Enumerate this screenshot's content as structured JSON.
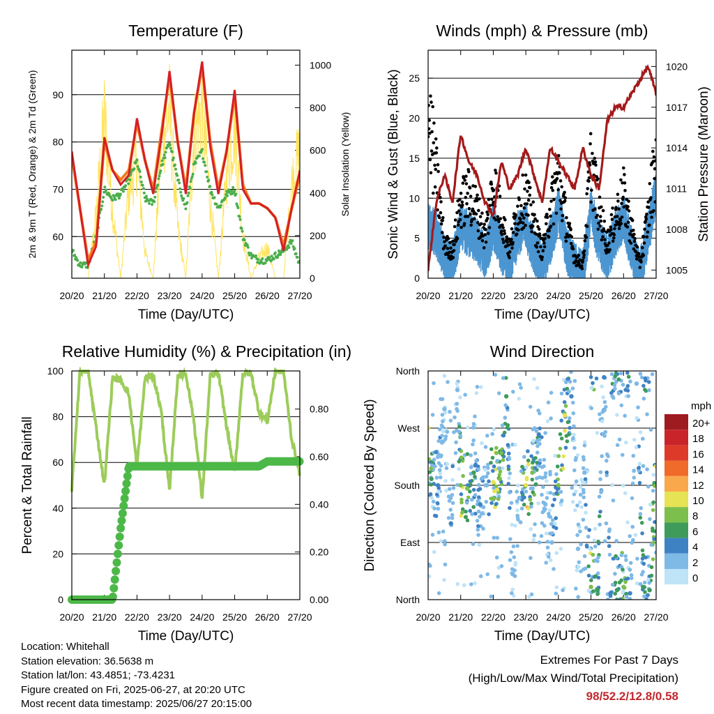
{
  "panels": {
    "temperature": {
      "title": "Temperature (F)",
      "ylabel_left": "2m & 9m T (Red, Orange) & 2m Td (Green)",
      "ylabel_right": "Solar Insolation (Yellow)",
      "xlabel": "Time (Day/UTC)"
    },
    "winds": {
      "title": "Winds (mph) & Pressure (mb)",
      "ylabel_left": "Sonic Wind & Gust (Blue, Black)",
      "ylabel_right": "Station Pressure (Maroon)",
      "xlabel": "Time (Day/UTC)"
    },
    "humidity": {
      "title": "Relative Humidity (%) & Precipitation (in)",
      "ylabel_left": "Percent & Total Rainfall",
      "xlabel": "Time (Day/UTC)"
    },
    "direction": {
      "title": "Wind Direction",
      "ylabel_left": "Direction (Colored By Speed)",
      "xlabel": "Time (Day/UTC)",
      "legend_title": "mph"
    }
  },
  "x_ticks": [
    "20/20",
    "21/20",
    "22/20",
    "23/20",
    "24/20",
    "25/20",
    "26/20",
    "27/20"
  ],
  "colors": {
    "temp2m": "#d42026",
    "temp9m": "#f47c20",
    "dewpoint": "#4cae4c",
    "solar": "#ffe35a",
    "wind": "#4b95d0",
    "gust": "#000000",
    "pressure": "#a31a1a",
    "rh": "#9ccc5a",
    "precip": "#4cb848"
  },
  "speed_legend": [
    {
      "label": "20+",
      "color": "#9e1b1f"
    },
    {
      "label": "18",
      "color": "#c8242a"
    },
    {
      "label": "16",
      "color": "#dd3a2a"
    },
    {
      "label": "14",
      "color": "#f06a2a"
    },
    {
      "label": "12",
      "color": "#f9a94b"
    },
    {
      "label": "10",
      "color": "#e6e354"
    },
    {
      "label": "8",
      "color": "#7cbf4c"
    },
    {
      "label": "6",
      "color": "#3e9b5a"
    },
    {
      "label": "4",
      "color": "#3f82c4"
    },
    {
      "label": "2",
      "color": "#7fb9e6"
    },
    {
      "label": "0",
      "color": "#bfe3f7"
    }
  ],
  "chart_data": [
    {
      "type": "line",
      "title": "Temperature (F)",
      "xlabel": "Time (Day/UTC)",
      "ylabel": "2m & 9m T (Red, Orange) & 2m Td (Green)",
      "ylabel_right": "Solar Insolation (Yellow)",
      "ylim": [
        51.2,
        99.4
      ],
      "yticks": [
        60,
        70,
        80,
        90
      ],
      "ylim_right": [
        0,
        1070
      ],
      "yticks_right": [
        0,
        200,
        400,
        600,
        800,
        1000
      ],
      "x": [
        20.0,
        20.25,
        20.5,
        20.75,
        21.0,
        21.25,
        21.5,
        21.75,
        22.0,
        22.25,
        22.5,
        22.75,
        23.0,
        23.25,
        23.5,
        23.75,
        24.0,
        24.25,
        24.5,
        24.75,
        25.0,
        25.25,
        25.5,
        25.75,
        26.0,
        26.25,
        26.5,
        26.75,
        27.0
      ],
      "series": [
        {
          "name": "2m T",
          "axis": "left",
          "values": [
            78,
            66,
            54,
            58,
            81,
            74,
            71,
            73,
            85,
            76,
            69,
            81,
            95,
            80,
            69,
            86,
            97,
            79,
            69,
            78,
            91,
            70,
            67,
            67,
            66,
            64,
            57,
            66,
            74
          ]
        },
        {
          "name": "9m T",
          "axis": "left",
          "values": [
            77,
            66,
            55,
            59,
            80,
            74,
            72,
            74,
            84,
            76,
            70,
            82,
            94,
            80,
            70,
            86,
            96,
            80,
            70,
            78,
            90,
            71,
            67,
            67,
            66,
            64,
            58,
            66,
            73
          ]
        },
        {
          "name": "2m Td",
          "axis": "left",
          "values": [
            57,
            54,
            54,
            60,
            70,
            68,
            69,
            72,
            76,
            68,
            67,
            75,
            80,
            72,
            66,
            75,
            78,
            70,
            66,
            69,
            70,
            60,
            56,
            55,
            55,
            56,
            57,
            59,
            54
          ]
        },
        {
          "name": "Solar Insolation",
          "axis": "right",
          "values": [
            0,
            0,
            0,
            380,
            950,
            400,
            0,
            520,
            700,
            150,
            0,
            800,
            990,
            300,
            0,
            850,
            1000,
            450,
            0,
            600,
            900,
            250,
            0,
            120,
            180,
            0,
            0,
            550,
            750
          ]
        }
      ]
    },
    {
      "type": "line",
      "title": "Winds (mph) & Pressure (mb)",
      "xlabel": "Time (Day/UTC)",
      "ylabel": "Sonic Wind & Gust (Blue, Black)",
      "ylabel_right": "Station Pressure (Maroon)",
      "ylim": [
        0,
        28.5
      ],
      "yticks": [
        0,
        5,
        10,
        15,
        20,
        25
      ],
      "ylim_right": [
        1004.4,
        1021.2
      ],
      "yticks_right": [
        1005,
        1008,
        1011,
        1014,
        1017,
        1020
      ],
      "x": [
        20.0,
        20.25,
        20.5,
        20.75,
        21.0,
        21.25,
        21.5,
        21.75,
        22.0,
        22.25,
        22.5,
        22.75,
        23.0,
        23.25,
        23.5,
        23.75,
        24.0,
        24.25,
        24.5,
        24.75,
        25.0,
        25.25,
        25.5,
        25.75,
        26.0,
        26.25,
        26.5,
        26.75,
        27.0
      ],
      "series": [
        {
          "name": "Sonic Wind",
          "axis": "left",
          "values": [
            7,
            6,
            3,
            2,
            7,
            6,
            5,
            3,
            7,
            4,
            2,
            6,
            7,
            4,
            2,
            5,
            9,
            4,
            2,
            1,
            9,
            5,
            3,
            6,
            8,
            4,
            1,
            6,
            11
          ]
        },
        {
          "name": "Gust",
          "axis": "left",
          "values": [
            24,
            15,
            5,
            4,
            11,
            12,
            10,
            6,
            14,
            9,
            4,
            10,
            12,
            8,
            4,
            10,
            15,
            8,
            3,
            2,
            17,
            10,
            5,
            9,
            12,
            7,
            2,
            9,
            18
          ]
        },
        {
          "name": "Station Pressure",
          "axis": "right",
          "values": [
            1005,
            1010,
            1012,
            1010,
            1015,
            1013,
            1012,
            1010,
            1009,
            1013,
            1011,
            1012,
            1014,
            1012,
            1010,
            1014,
            1013,
            1012,
            1011,
            1014,
            1012,
            1011,
            1016,
            1017,
            1017,
            1018,
            1019,
            1020,
            1018
          ]
        }
      ]
    },
    {
      "type": "line",
      "title": "Relative Humidity (%) & Precipitation (in)",
      "xlabel": "Time (Day/UTC)",
      "ylabel": "Percent & Total Rainfall",
      "ylim": [
        0,
        100
      ],
      "yticks": [
        0,
        20,
        40,
        60,
        80,
        100
      ],
      "ylim_right": [
        0,
        0.96
      ],
      "yticks_right": [
        0.0,
        0.2,
        0.4,
        0.6,
        0.8
      ],
      "ytick_labels_right": [
        "0.00",
        "0.20",
        "0.40",
        "0.60",
        "0.80"
      ],
      "x": [
        20.0,
        20.25,
        20.5,
        20.75,
        21.0,
        21.25,
        21.5,
        21.75,
        22.0,
        22.25,
        22.5,
        22.75,
        23.0,
        23.25,
        23.5,
        23.75,
        24.0,
        24.25,
        24.5,
        24.75,
        25.0,
        25.25,
        25.5,
        25.75,
        26.0,
        26.25,
        26.5,
        26.75,
        27.0
      ],
      "series": [
        {
          "name": "Relative Humidity",
          "axis": "left",
          "values": [
            48,
            100,
            100,
            75,
            50,
            97,
            96,
            90,
            58,
            97,
            98,
            82,
            47,
            98,
            99,
            78,
            44,
            98,
            99,
            76,
            55,
            99,
            99,
            82,
            78,
            100,
            100,
            70,
            55
          ]
        },
        {
          "name": "Total Rainfall",
          "axis": "right",
          "values": [
            0,
            0,
            0,
            0,
            0,
            0,
            0.3,
            0.56,
            0.56,
            0.56,
            0.56,
            0.56,
            0.56,
            0.56,
            0.56,
            0.56,
            0.56,
            0.56,
            0.56,
            0.56,
            0.56,
            0.56,
            0.56,
            0.56,
            0.58,
            0.58,
            0.58,
            0.58,
            0.58
          ]
        }
      ]
    },
    {
      "type": "scatter",
      "title": "Wind Direction",
      "xlabel": "Time (Day/UTC)",
      "ylabel": "Direction (Colored By Speed)",
      "ylim": [
        0,
        360
      ],
      "yticks": [
        0,
        90,
        180,
        270,
        360
      ],
      "ytick_labels": [
        "North",
        "East",
        "South",
        "West",
        "North"
      ],
      "colorbar_title": "mph",
      "x": [
        20.0,
        20.1,
        20.3,
        20.5,
        20.7,
        20.9,
        21.0,
        21.2,
        21.4,
        21.6,
        21.8,
        22.0,
        22.2,
        22.4,
        22.6,
        22.8,
        23.0,
        23.2,
        23.4,
        23.6,
        23.8,
        24.0,
        24.2,
        24.4,
        24.6,
        24.8,
        25.0,
        25.2,
        25.4,
        25.6,
        25.8,
        26.0,
        26.2,
        26.4,
        26.6,
        26.8,
        27.0
      ],
      "series": [
        {
          "name": "Direction",
          "values": [
            270,
            190,
            180,
            300,
            120,
            330,
            180,
            175,
            200,
            150,
            180,
            185,
            190,
            320,
            40,
            160,
            180,
            200,
            260,
            150,
            90,
            180,
            290,
            320,
            80,
            200,
            20,
            15,
            350,
            10,
            15,
            20,
            10,
            340,
            20,
            15,
            210
          ]
        },
        {
          "name": "Speed",
          "values": [
            10,
            6,
            3,
            2,
            3,
            2,
            8,
            7,
            5,
            3,
            2,
            9,
            8,
            6,
            2,
            2,
            10,
            8,
            4,
            2,
            2,
            8,
            9,
            3,
            1,
            2,
            8,
            5,
            3,
            4,
            6,
            7,
            4,
            2,
            6,
            5,
            10
          ]
        }
      ]
    }
  ],
  "info": {
    "location": "Location: Whitehall",
    "elevation": "Station elevation: 36.5638 m",
    "latlon": "Station lat/lon: 43.4851; -73.4231",
    "created": "Figure created on Fri, 2025-06-27, at 20:20 UTC",
    "recent": "Most recent data timestamp: 2025/06/27 20:15:00"
  },
  "extremes": {
    "title": "Extremes For Past 7 Days",
    "subtitle": "(High/Low/Max Wind/Total Precipitation)",
    "values": "98/52.2/12.8/0.58"
  }
}
